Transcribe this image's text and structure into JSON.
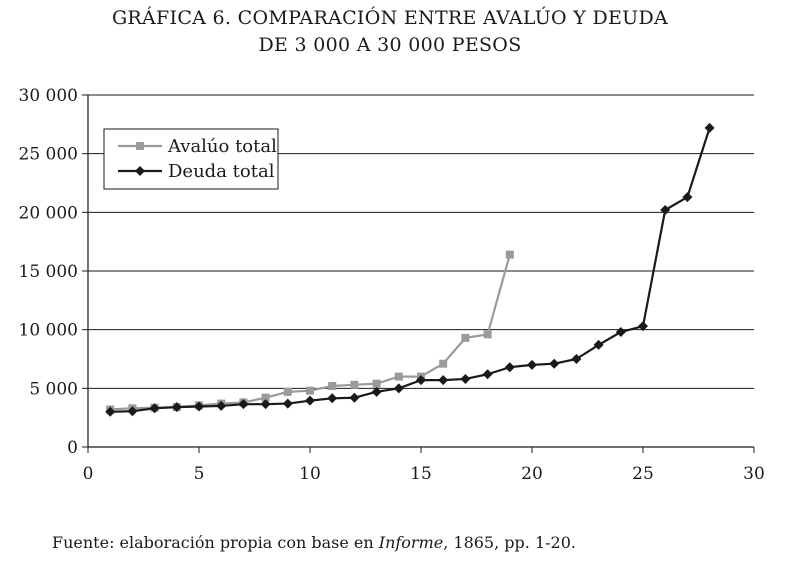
{
  "title_line1": "GRÁFICA 6. COMPARACIÓN ENTRE AVALÚO Y DEUDA",
  "title_line2": "DE 3 000 A 30 000 PESOS",
  "source": {
    "prefix": "Fuente: elaboración propia con base en ",
    "italic": "Informe",
    "suffix": ", 1865, pp. 1-20."
  },
  "chart_data": {
    "type": "line",
    "title": "GRÁFICA 6. COMPARACIÓN ENTRE AVALÚO Y DEUDA DE 3 000 A 30 000 PESOS",
    "xlim": [
      0,
      30
    ],
    "ylim": [
      0,
      30000
    ],
    "x_ticks": [
      0,
      5,
      10,
      15,
      20,
      25,
      30
    ],
    "x_tick_labels": [
      "0",
      "5",
      "10",
      "15",
      "20",
      "25",
      "30"
    ],
    "y_ticks": [
      0,
      5000,
      10000,
      15000,
      20000,
      25000,
      30000
    ],
    "y_tick_labels": [
      "0",
      "5 000",
      "10 000",
      "15 000",
      "20 000",
      "25 000",
      "30 000"
    ],
    "grid": "horizontal",
    "legend_position": "top-left",
    "series": [
      {
        "name": "Avalúo total",
        "color": "#9a9a9a",
        "marker": "square",
        "x": [
          1,
          2,
          3,
          4,
          5,
          6,
          7,
          8,
          9,
          10,
          11,
          12,
          13,
          14,
          15,
          16,
          17,
          18,
          19
        ],
        "y": [
          3200,
          3300,
          3350,
          3400,
          3550,
          3700,
          3800,
          4200,
          4700,
          4800,
          5200,
          5300,
          5400,
          6000,
          6000,
          7100,
          9300,
          9600,
          16400
        ]
      },
      {
        "name": "Deuda total",
        "color": "#1a1a1a",
        "marker": "diamond",
        "x": [
          1,
          2,
          3,
          4,
          5,
          6,
          7,
          8,
          9,
          10,
          11,
          12,
          13,
          14,
          15,
          16,
          17,
          18,
          19,
          20,
          21,
          22,
          23,
          24,
          25,
          26,
          27,
          28
        ],
        "y": [
          3000,
          3050,
          3300,
          3400,
          3450,
          3500,
          3650,
          3650,
          3700,
          3950,
          4150,
          4200,
          4700,
          5000,
          5700,
          5700,
          5800,
          6200,
          6800,
          7000,
          7100,
          7500,
          8700,
          9800,
          10300,
          20200,
          21300,
          27200
        ]
      }
    ]
  }
}
